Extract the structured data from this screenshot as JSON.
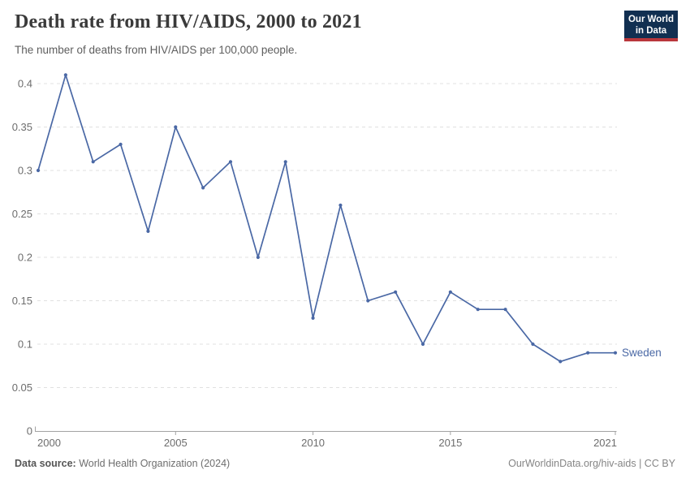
{
  "header": {
    "title": "Death rate from HIV/AIDS, 2000 to 2021",
    "subtitle": "The number of deaths from HIV/AIDS per 100,000 people."
  },
  "logo": {
    "line1": "Our World",
    "line2": "in Data",
    "bg_color": "#112f51",
    "accent_color": "#b9373c"
  },
  "chart_data": {
    "type": "line",
    "title": "Death rate from HIV/AIDS, 2000 to 2021",
    "subtitle": "The number of deaths from HIV/AIDS per 100,000 people.",
    "x": [
      2000,
      2001,
      2002,
      2003,
      2004,
      2005,
      2006,
      2007,
      2008,
      2009,
      2010,
      2011,
      2012,
      2013,
      2014,
      2015,
      2016,
      2017,
      2018,
      2019,
      2020,
      2021
    ],
    "series": [
      {
        "name": "Sweden",
        "color": "#4a68a5",
        "values": [
          0.3,
          0.41,
          0.31,
          0.33,
          0.23,
          0.35,
          0.28,
          0.31,
          0.2,
          0.31,
          0.13,
          0.26,
          0.15,
          0.16,
          0.1,
          0.16,
          0.14,
          0.14,
          0.1,
          0.08,
          0.09,
          0.09
        ]
      }
    ],
    "xlabel": "",
    "ylabel": "",
    "ylim": [
      0,
      0.41
    ],
    "yticks": [
      0,
      0.05,
      0.1,
      0.15,
      0.2,
      0.25,
      0.3,
      0.35,
      0.4
    ],
    "xticks": [
      2000,
      2005,
      2010,
      2015,
      2021
    ],
    "grid": "horizontal-dashed",
    "legend_position": "line-end",
    "grid_color": "#e0e0e0",
    "axis_color": "#a3a3a3"
  },
  "footer": {
    "source_label": "Data source:",
    "source_text": " World Health Organization (2024)",
    "credit": "OurWorldinData.org/hiv-aids | CC BY"
  }
}
